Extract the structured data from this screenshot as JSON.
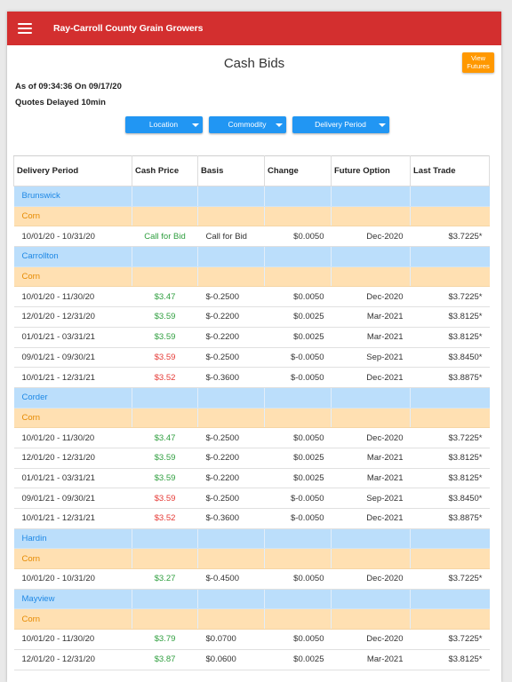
{
  "header": {
    "title": "Ray-Carroll County Grain Growers",
    "menu_icon": "hamburger-menu-icon"
  },
  "page": {
    "title": "Cash Bids",
    "view_futures": "View Futures",
    "as_of": "As of 09:34:36 On 09/17/20",
    "delay_note": "Quotes Delayed 10min"
  },
  "filters": [
    {
      "label": "Location"
    },
    {
      "label": "Commodity"
    },
    {
      "label": "Delivery Period"
    }
  ],
  "colors": {
    "header": "#d32f2f",
    "accent": "#2196f3",
    "futures": "#ff9800",
    "up": "#2e9e3e",
    "down": "#e53935"
  },
  "table": {
    "columns": [
      "Delivery Period",
      "Cash Price",
      "Basis",
      "Change",
      "Future Option",
      "Last Trade"
    ],
    "groups": [
      {
        "location": "Brunswick",
        "commodity": "Corn",
        "rows": [
          {
            "period": "10/01/20 - 10/31/20",
            "price": "Call for Bid",
            "trend": "up",
            "basis": "Call for Bid",
            "change": "$0.0050",
            "option": "Dec-2020",
            "last": "$3.7225*"
          }
        ]
      },
      {
        "location": "Carrollton",
        "commodity": "Corn",
        "rows": [
          {
            "period": "10/01/20 - 11/30/20",
            "price": "$3.47",
            "trend": "up",
            "basis": "$-0.2500",
            "change": "$0.0050",
            "option": "Dec-2020",
            "last": "$3.7225*"
          },
          {
            "period": "12/01/20 - 12/31/20",
            "price": "$3.59",
            "trend": "up",
            "basis": "$-0.2200",
            "change": "$0.0025",
            "option": "Mar-2021",
            "last": "$3.8125*"
          },
          {
            "period": "01/01/21 - 03/31/21",
            "price": "$3.59",
            "trend": "up",
            "basis": "$-0.2200",
            "change": "$0.0025",
            "option": "Mar-2021",
            "last": "$3.8125*"
          },
          {
            "period": "09/01/21 - 09/30/21",
            "price": "$3.59",
            "trend": "down",
            "basis": "$-0.2500",
            "change": "$-0.0050",
            "option": "Sep-2021",
            "last": "$3.8450*"
          },
          {
            "period": "10/01/21 - 12/31/21",
            "price": "$3.52",
            "trend": "down",
            "basis": "$-0.3600",
            "change": "$-0.0050",
            "option": "Dec-2021",
            "last": "$3.8875*"
          }
        ]
      },
      {
        "location": "Corder",
        "commodity": "Corn",
        "rows": [
          {
            "period": "10/01/20 - 11/30/20",
            "price": "$3.47",
            "trend": "up",
            "basis": "$-0.2500",
            "change": "$0.0050",
            "option": "Dec-2020",
            "last": "$3.7225*"
          },
          {
            "period": "12/01/20 - 12/31/20",
            "price": "$3.59",
            "trend": "up",
            "basis": "$-0.2200",
            "change": "$0.0025",
            "option": "Mar-2021",
            "last": "$3.8125*"
          },
          {
            "period": "01/01/21 - 03/31/21",
            "price": "$3.59",
            "trend": "up",
            "basis": "$-0.2200",
            "change": "$0.0025",
            "option": "Mar-2021",
            "last": "$3.8125*"
          },
          {
            "period": "09/01/21 - 09/30/21",
            "price": "$3.59",
            "trend": "down",
            "basis": "$-0.2500",
            "change": "$-0.0050",
            "option": "Sep-2021",
            "last": "$3.8450*"
          },
          {
            "period": "10/01/21 - 12/31/21",
            "price": "$3.52",
            "trend": "down",
            "basis": "$-0.3600",
            "change": "$-0.0050",
            "option": "Dec-2021",
            "last": "$3.8875*"
          }
        ]
      },
      {
        "location": "Hardin",
        "commodity": "Corn",
        "rows": [
          {
            "period": "10/01/20 - 10/31/20",
            "price": "$3.27",
            "trend": "up",
            "basis": "$-0.4500",
            "change": "$0.0050",
            "option": "Dec-2020",
            "last": "$3.7225*"
          }
        ]
      },
      {
        "location": "Mayview",
        "commodity": "Corn",
        "rows": [
          {
            "period": "10/01/20 - 11/30/20",
            "price": "$3.79",
            "trend": "up",
            "basis": "$0.0700",
            "change": "$0.0050",
            "option": "Dec-2020",
            "last": "$3.7225*"
          },
          {
            "period": "12/01/20 - 12/31/20",
            "price": "$3.87",
            "trend": "up",
            "basis": "$0.0600",
            "change": "$0.0025",
            "option": "Mar-2021",
            "last": "$3.8125*"
          }
        ]
      }
    ]
  }
}
